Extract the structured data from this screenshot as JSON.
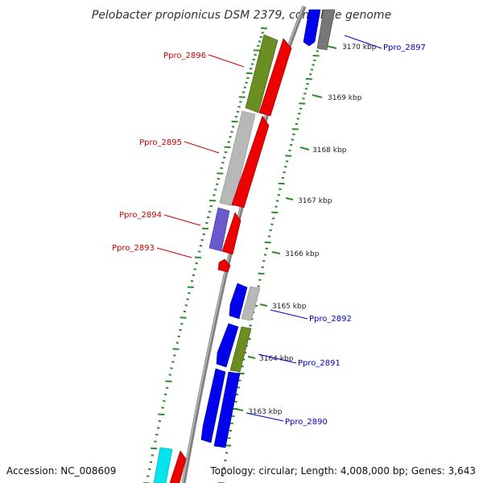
{
  "title": "Pelobacter propionicus DSM 2379, complete genome",
  "footer": {
    "accession": "Accession: NC_008609",
    "summary": "Topology: circular; Length: 4,008,000 bp; Genes: 3,643"
  },
  "colors": {
    "backbone": "#808080",
    "tick": "#2e8b2e",
    "forward_label": "#0000cc",
    "reverse_label": "#cc0000"
  },
  "scale_labels": [
    "3170 kbp",
    "3169 kbp",
    "3168 kbp",
    "3167 kbp",
    "3166 kbp",
    "3165 kbp",
    "3164 kbp",
    "3163 kbp"
  ],
  "gene_labels": [
    {
      "name": "Ppro_2897",
      "strand": "forward"
    },
    {
      "name": "Ppro_2896",
      "strand": "reverse"
    },
    {
      "name": "Ppro_2895",
      "strand": "reverse"
    },
    {
      "name": "Ppro_2894",
      "strand": "reverse"
    },
    {
      "name": "Ppro_2893",
      "strand": "reverse"
    },
    {
      "name": "Ppro_2892",
      "strand": "forward"
    },
    {
      "name": "Ppro_2891",
      "strand": "forward"
    },
    {
      "name": "Ppro_2890",
      "strand": "forward"
    }
  ]
}
